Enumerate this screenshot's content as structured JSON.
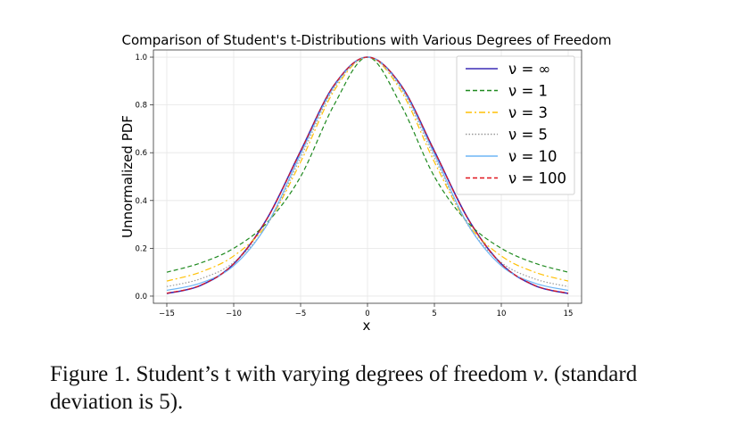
{
  "caption": {
    "prefix": "Figure 1. Student’s t with varying degrees of freedom ",
    "symbol": "ν",
    "suffix": ". (standard deviation is 5)."
  },
  "chart_data": {
    "type": "line",
    "title": "Comparison of Student's t-Distributions with Various Degrees of Freedom",
    "xlabel": "x",
    "ylabel": "Unnormalized PDF",
    "xlim": [
      -16,
      16
    ],
    "ylim": [
      -0.03,
      1.03
    ],
    "xticks": [
      -15,
      -10,
      -5,
      0,
      5,
      10,
      15
    ],
    "xtick_labels": [
      "−15",
      "−10",
      "−5",
      "0",
      "5",
      "10",
      "15"
    ],
    "yticks": [
      0.0,
      0.2,
      0.4,
      0.6,
      0.8,
      1.0
    ],
    "ytick_labels": [
      "0.0",
      "0.2",
      "0.4",
      "0.6",
      "0.8",
      "1.0"
    ],
    "grid": true,
    "legend_position": "top-right",
    "x": [
      -15,
      -12.5,
      -10,
      -7.5,
      -5,
      -2.5,
      0,
      2.5,
      5,
      7.5,
      10,
      12.5,
      15
    ],
    "series": [
      {
        "name": "ν = ∞",
        "color": "#3b2bb5",
        "dash": "solid",
        "values": [
          0.011,
          0.044,
          0.135,
          0.325,
          0.607,
          0.882,
          1.0,
          0.882,
          0.607,
          0.325,
          0.135,
          0.044,
          0.011
        ]
      },
      {
        "name": "ν = 1",
        "color": "#1f8a1f",
        "dash": "dashed",
        "values": [
          0.1,
          0.138,
          0.2,
          0.308,
          0.5,
          0.8,
          1.0,
          0.8,
          0.5,
          0.308,
          0.2,
          0.138,
          0.1
        ]
      },
      {
        "name": "ν = 3",
        "color": "#ffc107",
        "dash": "dashdot",
        "values": [
          0.063,
          0.1,
          0.168,
          0.302,
          0.561,
          0.859,
          1.0,
          0.859,
          0.561,
          0.302,
          0.168,
          0.1,
          0.063
        ]
      },
      {
        "name": "ν = 5",
        "color": "#9a9a9a",
        "dash": "dotted",
        "values": [
          0.04,
          0.072,
          0.141,
          0.298,
          0.579,
          0.87,
          1.0,
          0.87,
          0.579,
          0.298,
          0.141,
          0.072,
          0.04
        ]
      },
      {
        "name": "ν = 10",
        "color": "#6fb6f5",
        "dash": "solid",
        "values": [
          0.024,
          0.054,
          0.127,
          0.3,
          0.594,
          0.877,
          1.0,
          0.877,
          0.594,
          0.3,
          0.127,
          0.054,
          0.024
        ]
      },
      {
        "name": "ν = 100",
        "color": "#e0151e",
        "dash": "dashed",
        "values": [
          0.012,
          0.045,
          0.135,
          0.324,
          0.606,
          0.882,
          1.0,
          0.882,
          0.606,
          0.324,
          0.135,
          0.045,
          0.012
        ]
      }
    ]
  }
}
